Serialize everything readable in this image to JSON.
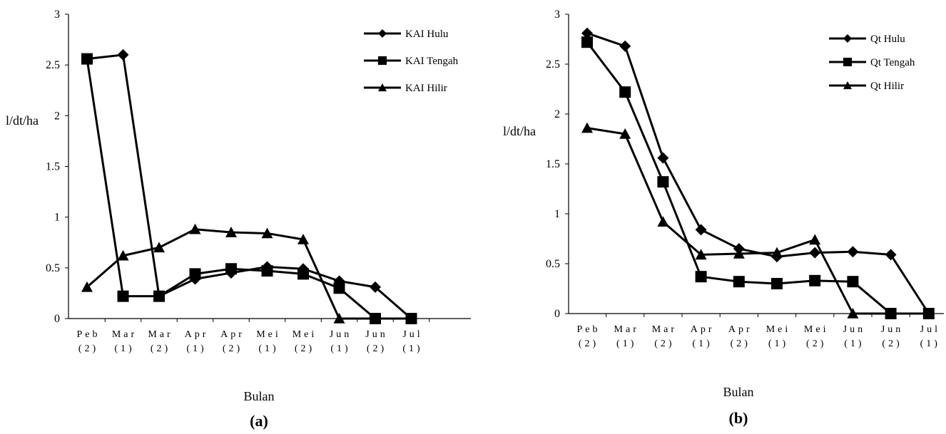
{
  "chart_data": [
    {
      "type": "line",
      "categories": [
        [
          "Peb",
          "(2)"
        ],
        [
          "Mar",
          "(1)"
        ],
        [
          "Mar",
          "(2)"
        ],
        [
          "Apr",
          "(1)"
        ],
        [
          "Apr",
          "(2)"
        ],
        [
          "Mei",
          "(1)"
        ],
        [
          "Mei",
          "(2)"
        ],
        [
          "Jun",
          "(1)"
        ],
        [
          "Jun",
          "(2)"
        ],
        [
          "Jul",
          "(1)"
        ]
      ],
      "series": [
        {
          "name": "KAI Hulu",
          "marker": "diamond",
          "values": [
            2.56,
            2.6,
            0.22,
            0.39,
            0.45,
            0.51,
            0.49,
            0.37,
            0.31,
            0.0
          ]
        },
        {
          "name": "KAI Tengah",
          "marker": "square",
          "values": [
            2.56,
            0.22,
            0.22,
            0.44,
            0.49,
            0.47,
            0.44,
            0.3,
            0.0,
            0.0
          ]
        },
        {
          "name": "KAI Hilir",
          "marker": "triangle",
          "values": [
            0.31,
            0.62,
            0.7,
            0.88,
            0.85,
            0.84,
            0.78,
            0.0,
            0.0,
            0.0
          ]
        }
      ],
      "ylabel": "l/dt/ha",
      "xlabel": "Bulan",
      "ylim": [
        0,
        3
      ],
      "yticks": [
        "0",
        "0.5",
        "1",
        "1.5",
        "2",
        "2.5",
        "3"
      ],
      "panel_label": "(a)",
      "legend_position": "top-right",
      "grid": false
    },
    {
      "type": "line",
      "categories": [
        [
          "Peb",
          "(2)"
        ],
        [
          "Mar",
          "(1)"
        ],
        [
          "Mar",
          "(2)"
        ],
        [
          "Apr",
          "(1)"
        ],
        [
          "Apr",
          "(2)"
        ],
        [
          "Mei",
          "(1)"
        ],
        [
          "Mei",
          "(2)"
        ],
        [
          "Jun",
          "(1)"
        ],
        [
          "Jun",
          "(2)"
        ],
        [
          "Jul",
          "(1)"
        ]
      ],
      "series": [
        {
          "name": "Qt Hulu",
          "marker": "diamond",
          "values": [
            2.81,
            2.68,
            1.56,
            0.84,
            0.65,
            0.57,
            0.61,
            0.62,
            0.59,
            0.0
          ]
        },
        {
          "name": "Qt Tengah",
          "marker": "square",
          "values": [
            2.72,
            2.22,
            1.32,
            0.37,
            0.32,
            0.3,
            0.33,
            0.32,
            0.0,
            0.0
          ]
        },
        {
          "name": "Qt Hilir",
          "marker": "triangle",
          "values": [
            1.86,
            1.8,
            0.92,
            0.59,
            0.6,
            0.61,
            0.74,
            0.0,
            0.0,
            0.0
          ]
        }
      ],
      "ylabel": "l/dt/ha",
      "xlabel": "Bulan",
      "ylim": [
        0,
        3
      ],
      "yticks": [
        "0",
        "0.5",
        "1",
        "1.5",
        "2",
        "2.5",
        "3"
      ],
      "panel_label": "(b)",
      "legend_position": "top-right",
      "grid": false
    }
  ],
  "colors": {
    "line": "#000000",
    "background": "#ffffff"
  }
}
